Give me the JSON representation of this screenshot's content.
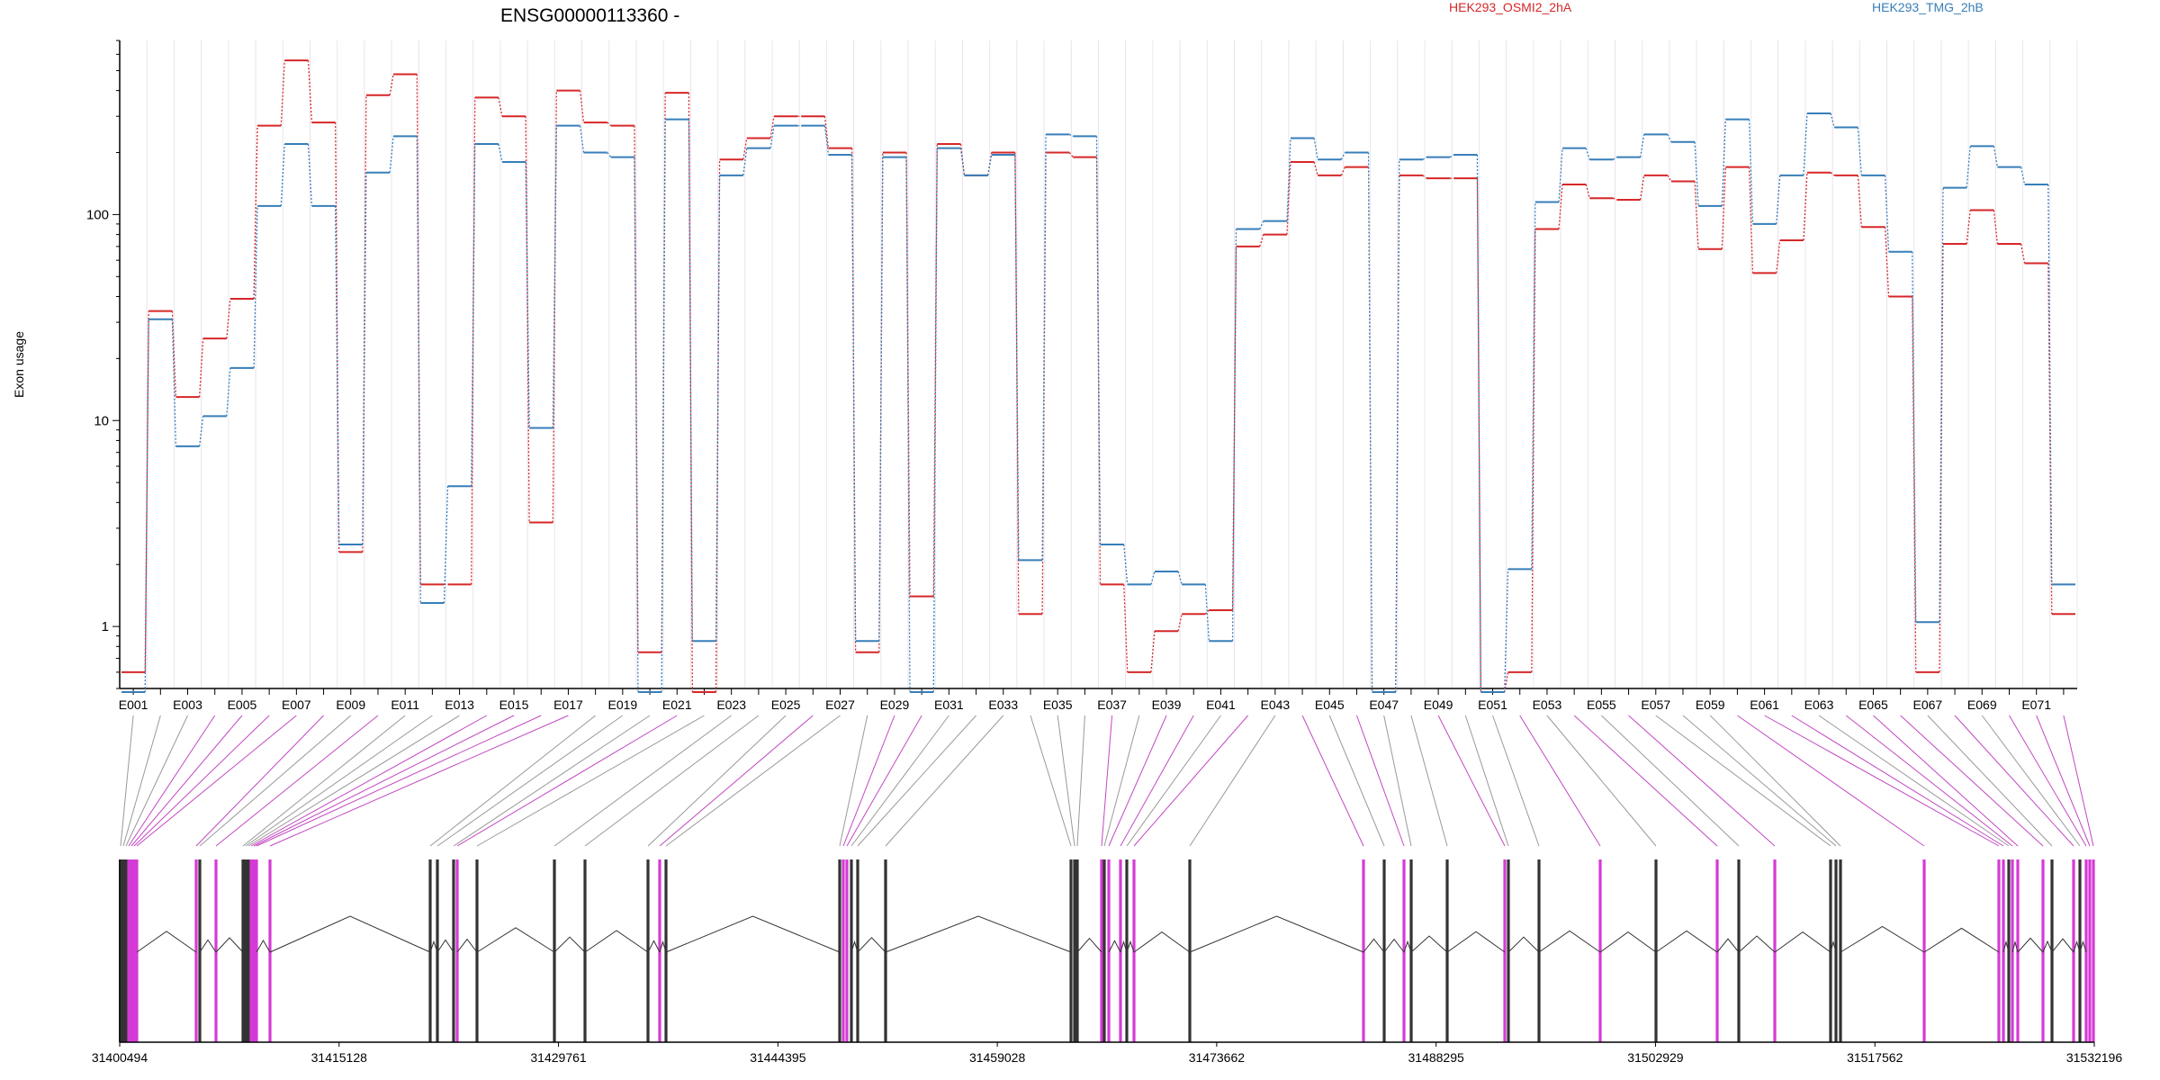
{
  "chart_data": {
    "type": "line",
    "title": "ENSG00000113360 -",
    "ylabel": "Exon usage",
    "y_scale": "log",
    "ylim": [
      0.5,
      700
    ],
    "yticks": [
      1,
      10,
      100
    ],
    "ytick_labels": [
      "1",
      "10",
      "100"
    ],
    "x_tick_labels": [
      "E001",
      "E003",
      "E005",
      "E007",
      "E009",
      "E011",
      "E013",
      "E015",
      "E017",
      "E019",
      "E021",
      "E023",
      "E025",
      "E027",
      "E029",
      "E031",
      "E033",
      "E035",
      "E037",
      "E039",
      "E041",
      "E043",
      "E045",
      "E047",
      "E049",
      "E051",
      "E053",
      "E055",
      "E057",
      "E059",
      "E061",
      "E063",
      "E065",
      "E067",
      "E069",
      "E071"
    ],
    "categories": [
      "E001",
      "E002",
      "E003",
      "E004",
      "E005",
      "E006",
      "E007",
      "E008",
      "E009",
      "E010",
      "E011",
      "E012",
      "E013",
      "E014",
      "E015",
      "E016",
      "E017",
      "E018",
      "E019",
      "E020",
      "E021",
      "E022",
      "E023",
      "E024",
      "E025",
      "E026",
      "E027",
      "E028",
      "E029",
      "E030",
      "E031",
      "E032",
      "E033",
      "E034",
      "E035",
      "E036",
      "E037",
      "E038",
      "E039",
      "E040",
      "E041",
      "E042",
      "E043",
      "E044",
      "E045",
      "E046",
      "E047",
      "E048",
      "E049",
      "E050",
      "E051",
      "E052",
      "E053",
      "E054",
      "E055",
      "E056",
      "E057",
      "E058",
      "E059",
      "E060",
      "E061",
      "E062",
      "E063",
      "E064",
      "E065",
      "E066",
      "E067",
      "E068",
      "E069",
      "E070",
      "E071",
      "E072"
    ],
    "series": [
      {
        "name": "HEK293_OSMI2_2hA",
        "color": "#d62728",
        "values": [
          0.6,
          34,
          13,
          25,
          39,
          270,
          560,
          280,
          2.3,
          380,
          480,
          1.6,
          1.6,
          370,
          300,
          3.2,
          400,
          280,
          270,
          0.75,
          390,
          0.48,
          185,
          235,
          300,
          300,
          210,
          0.75,
          200,
          1.4,
          220,
          155,
          200,
          1.15,
          200,
          190,
          1.6,
          0.6,
          0.95,
          1.15,
          1.2,
          70,
          80,
          180,
          155,
          170,
          0.48,
          155,
          150,
          150,
          0.48,
          0.6,
          85,
          140,
          120,
          118,
          155,
          145,
          68,
          170,
          52,
          75,
          160,
          155,
          87,
          40,
          0.6,
          72,
          105,
          72,
          58,
          1.15
        ]
      },
      {
        "name": "HEK293_TMG_2hB",
        "color": "#377eb8",
        "values": [
          0.48,
          31,
          7.5,
          10.5,
          18,
          110,
          220,
          110,
          2.5,
          160,
          240,
          1.3,
          4.8,
          220,
          180,
          9.2,
          270,
          200,
          190,
          0.48,
          290,
          0.85,
          155,
          210,
          270,
          270,
          195,
          0.85,
          190,
          0.48,
          210,
          155,
          195,
          2.1,
          245,
          240,
          2.5,
          1.6,
          1.85,
          1.6,
          0.85,
          85,
          93,
          235,
          185,
          200,
          0.48,
          185,
          190,
          195,
          0.48,
          1.9,
          115,
          210,
          185,
          190,
          245,
          225,
          110,
          290,
          90,
          155,
          310,
          265,
          155,
          66,
          1.05,
          135,
          215,
          170,
          140,
          1.6
        ]
      }
    ],
    "legend_position": "top",
    "grid": "vertical",
    "genomic_axis": {
      "tick_labels": [
        "31400494",
        "31415128",
        "31429761",
        "31444395",
        "31459028",
        "31473662",
        "31488295",
        "31502929",
        "31517562",
        "31532196"
      ]
    }
  }
}
